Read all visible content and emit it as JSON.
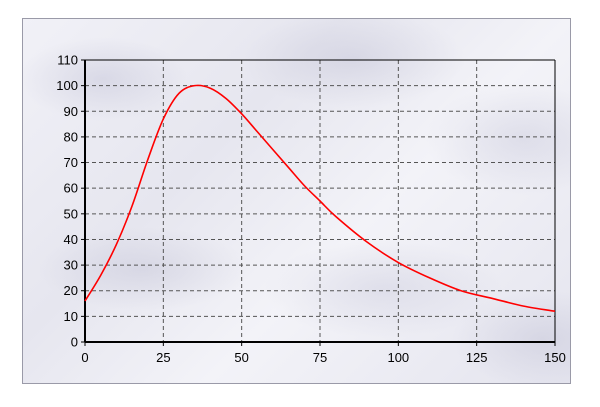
{
  "chart_data": {
    "type": "line",
    "title": "",
    "xlabel": "",
    "ylabel": "",
    "xlim": [
      0,
      150
    ],
    "ylim": [
      0,
      110
    ],
    "x_ticks": [
      0,
      25,
      50,
      75,
      100,
      125,
      150
    ],
    "y_ticks": [
      0,
      10,
      20,
      30,
      40,
      50,
      60,
      70,
      80,
      90,
      100,
      110
    ],
    "grid": true,
    "series": [
      {
        "color": "#ff0000",
        "x": [
          0,
          5,
          10,
          15,
          20,
          25,
          30,
          35,
          40,
          45,
          50,
          55,
          60,
          65,
          70,
          75,
          80,
          90,
          100,
          110,
          120,
          130,
          140,
          150
        ],
        "y": [
          16,
          26,
          38,
          53,
          71,
          87,
          97,
          100,
          99,
          95,
          89,
          82,
          75,
          68,
          61,
          55,
          49,
          39,
          31,
          25,
          20,
          17,
          14,
          12
        ]
      }
    ]
  }
}
